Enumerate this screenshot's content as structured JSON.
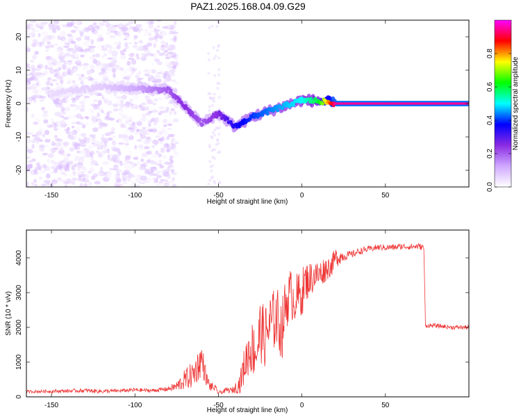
{
  "figure": {
    "title": "PAZ1.2025.168.04.09.G29"
  },
  "chart_data": [
    {
      "type": "heatmap",
      "title": "PAZ1.2025.168.04.09.G29",
      "xlabel": "Height of straight line (km)",
      "ylabel": "Frequency (Hz)",
      "xlim": [
        -165,
        100
      ],
      "ylim": [
        -25,
        25
      ],
      "xticks": [
        -150,
        -100,
        -50,
        0,
        50
      ],
      "yticks": [
        -20,
        -10,
        0,
        10,
        20
      ],
      "colorbar": {
        "label": "Normalized spectral amplitude",
        "range": [
          0.0,
          1.0
        ],
        "ticks": [
          "0.0",
          "0.2",
          "0.4",
          "0.6",
          "0.8"
        ],
        "colormap": [
          "#ffffff",
          "#cfa8ff",
          "#8a2be2",
          "#0000ff",
          "#00ffff",
          "#00ff00",
          "#ffff00",
          "#ff0000",
          "#ff00ff"
        ]
      },
      "ridge": {
        "description_points": [
          {
            "height_km": -150,
            "frequency_hz": 3.0,
            "amplitude": 0.05
          },
          {
            "height_km": -120,
            "frequency_hz": 5.0,
            "amplitude": 0.07
          },
          {
            "height_km": -100,
            "frequency_hz": 4.5,
            "amplitude": 0.12
          },
          {
            "height_km": -80,
            "frequency_hz": 4.0,
            "amplitude": 0.2
          },
          {
            "height_km": -70,
            "frequency_hz": -1.0,
            "amplitude": 0.25
          },
          {
            "height_km": -60,
            "frequency_hz": -6.0,
            "amplitude": 0.2
          },
          {
            "height_km": -50,
            "frequency_hz": -3.0,
            "amplitude": 0.25
          },
          {
            "height_km": -40,
            "frequency_hz": -7.0,
            "amplitude": 0.35
          },
          {
            "height_km": -30,
            "frequency_hz": -4.0,
            "amplitude": 0.4
          },
          {
            "height_km": -15,
            "frequency_hz": -1.5,
            "amplitude": 0.45
          },
          {
            "height_km": 0,
            "frequency_hz": 1.0,
            "amplitude": 0.5
          },
          {
            "height_km": 10,
            "frequency_hz": 0.8,
            "amplitude": 0.6
          },
          {
            "height_km": 20,
            "frequency_hz": 0.0,
            "amplitude": 0.95
          },
          {
            "height_km": 100,
            "frequency_hz": 0.0,
            "amplitude": 0.95
          }
        ]
      }
    },
    {
      "type": "line",
      "xlabel": "Height of straight line (km)",
      "ylabel": "SNR (10 * v/v)",
      "xlim": [
        -165,
        100
      ],
      "ylim": [
        0,
        4800
      ],
      "xticks": [
        -150,
        -100,
        -50,
        0,
        50
      ],
      "yticks": [
        0,
        1000,
        2000,
        3000,
        4000
      ],
      "series": [
        {
          "color": "#ee3333",
          "x": [
            -165,
            -150,
            -140,
            -130,
            -120,
            -110,
            -100,
            -90,
            -80,
            -75,
            -70,
            -65,
            -60,
            -57,
            -55,
            -52,
            -50,
            -47,
            -45,
            -42,
            -40,
            -37,
            -35,
            -32,
            -30,
            -27,
            -25,
            -22,
            -20,
            -17,
            -15,
            -12,
            -10,
            -7,
            -5,
            -2,
            0,
            2,
            5,
            8,
            10,
            12,
            15,
            18,
            20,
            25,
            30,
            35,
            40,
            45,
            50,
            55,
            60,
            65,
            70,
            73,
            74,
            80,
            90,
            100
          ],
          "y": [
            150,
            160,
            170,
            180,
            160,
            170,
            200,
            180,
            230,
            300,
            500,
            650,
            1100,
            500,
            300,
            250,
            120,
            150,
            200,
            180,
            250,
            400,
            800,
            1300,
            1400,
            1300,
            1900,
            1700,
            2000,
            2200,
            2300,
            1900,
            2600,
            3000,
            2800,
            2900,
            3000,
            3300,
            3400,
            3500,
            3500,
            3600,
            3700,
            3800,
            4000,
            4050,
            4100,
            4200,
            4250,
            4300,
            4300,
            4300,
            4330,
            4320,
            4330,
            4300,
            2050,
            2050,
            2000,
            2000
          ],
          "noise_amplitude": [
            40,
            50,
            50,
            60,
            60,
            50,
            60,
            50,
            70,
            150,
            300,
            400,
            500,
            200,
            150,
            100,
            50,
            60,
            80,
            80,
            150,
            300,
            500,
            700,
            800,
            800,
            900,
            900,
            1000,
            900,
            900,
            900,
            800,
            700,
            700,
            700,
            700,
            600,
            500,
            450,
            400,
            400,
            350,
            300,
            300,
            150,
            100,
            100,
            90,
            90,
            90,
            90,
            90,
            90,
            90,
            90,
            60,
            60,
            60,
            60
          ]
        }
      ]
    }
  ]
}
